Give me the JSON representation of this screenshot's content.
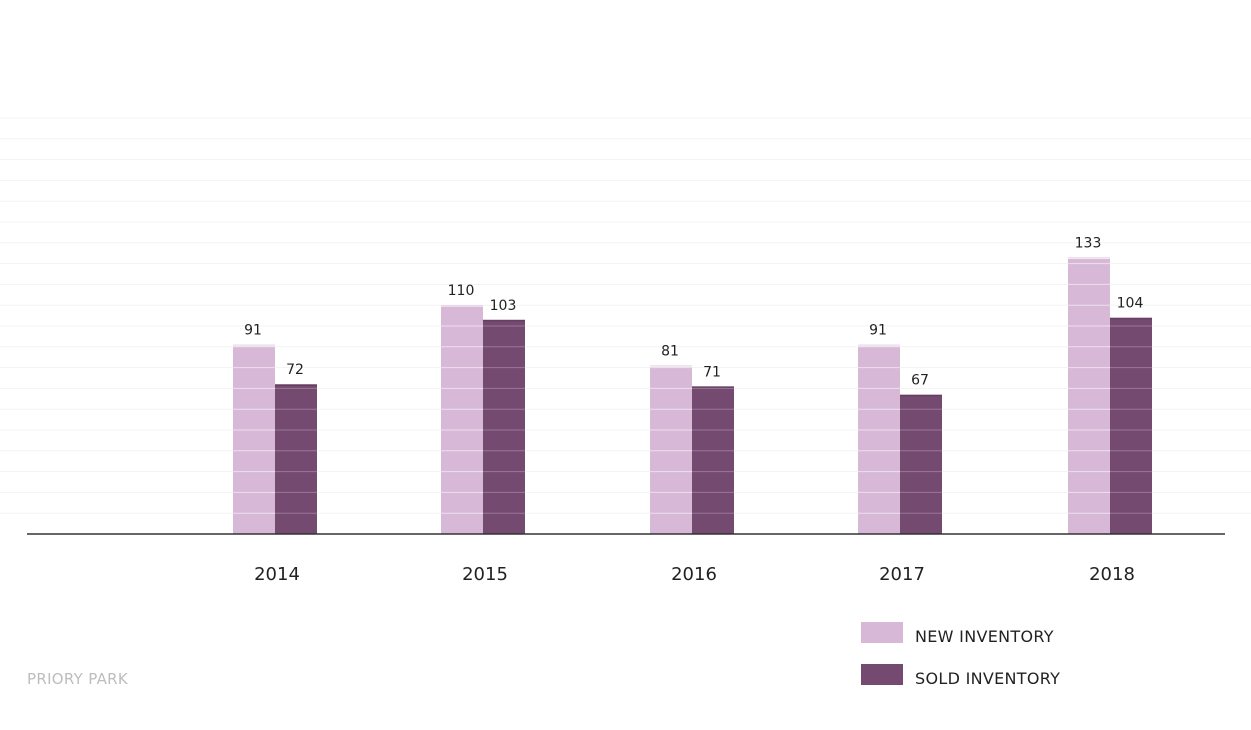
{
  "chart_data": {
    "type": "bar",
    "categories": [
      "2014",
      "2015",
      "2016",
      "2017",
      "2018"
    ],
    "series": [
      {
        "name": "NEW INVENTORY",
        "values": [
          91,
          110,
          81,
          91,
          133
        ],
        "color": "#d7b8d7"
      },
      {
        "name": "SOLD INVENTORY",
        "values": [
          72,
          103,
          71,
          67,
          104
        ],
        "color": "#754a70"
      }
    ],
    "title": "",
    "xlabel": "",
    "ylabel": "",
    "ylim": [
      0,
      200
    ],
    "grid": true,
    "legend_position": "bottom-right"
  },
  "footer": {
    "label": "PRIORY PARK"
  }
}
